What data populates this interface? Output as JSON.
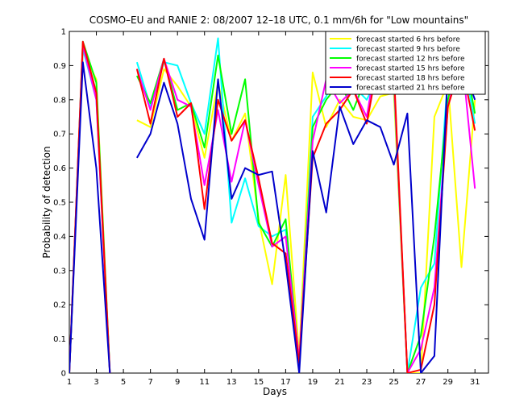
{
  "chart_data": {
    "type": "line",
    "title": "COSMO–EU and RANIE 2: 08/2007 12–18 UTC, 0.1 mm/6h for \"Low mountains\"",
    "xlabel": "Days",
    "ylabel": "Probability of detection",
    "xlim": [
      1,
      32
    ],
    "ylim": [
      0,
      1
    ],
    "xticks": [
      1,
      3,
      5,
      7,
      9,
      11,
      13,
      15,
      17,
      19,
      21,
      23,
      25,
      27,
      29,
      31
    ],
    "yticks": [
      0,
      0.1,
      0.2,
      0.3,
      0.4,
      0.5,
      0.6,
      0.7,
      0.8,
      0.9,
      1
    ],
    "ytick_labels": [
      "0",
      "0.1",
      "0.2",
      "0.3",
      "0.4",
      "0.5",
      "0.6",
      "0.7",
      "0.8",
      "0.9",
      "1"
    ],
    "grid": false,
    "legend_position": "top-right",
    "series": [
      {
        "name": "forecast started 6 hrs before",
        "color": "#ffff00",
        "x": [
          1,
          2,
          3,
          4,
          6,
          7,
          8,
          9,
          10,
          11,
          12,
          13,
          14,
          15,
          16,
          17,
          18,
          19,
          20,
          21,
          22,
          23,
          24,
          25,
          26,
          27,
          28,
          29,
          30,
          31
        ],
        "y": [
          0.0,
          0.94,
          0.86,
          0.0,
          0.74,
          0.72,
          0.89,
          0.84,
          0.78,
          0.63,
          0.85,
          0.68,
          0.76,
          0.45,
          0.26,
          0.58,
          0.05,
          0.88,
          0.72,
          0.8,
          0.75,
          0.74,
          0.81,
          0.82,
          0.0,
          0.0,
          0.75,
          0.85,
          0.31,
          0.8
        ]
      },
      {
        "name": "forecast started 9 hrs before",
        "color": "#00ffff",
        "x": [
          1,
          2,
          3,
          4,
          6,
          7,
          8,
          9,
          10,
          11,
          12,
          13,
          14,
          15,
          16,
          17,
          18,
          19,
          20,
          21,
          22,
          23,
          24,
          25,
          26,
          27,
          28,
          29,
          30,
          31
        ],
        "y": [
          0.0,
          0.95,
          0.8,
          0.0,
          0.91,
          0.78,
          0.91,
          0.9,
          0.79,
          0.7,
          0.98,
          0.44,
          0.57,
          0.43,
          0.4,
          0.42,
          0.02,
          0.75,
          0.81,
          0.89,
          0.84,
          0.8,
          0.88,
          0.85,
          0.0,
          0.25,
          0.32,
          0.87,
          0.95,
          0.73
        ]
      },
      {
        "name": "forecast started 12 hrs before",
        "color": "#00ff00",
        "x": [
          1,
          2,
          3,
          4,
          6,
          7,
          8,
          9,
          10,
          11,
          12,
          13,
          14,
          15,
          16,
          17,
          18,
          19,
          20,
          21,
          22,
          23,
          24,
          25,
          26,
          27,
          28,
          29,
          30,
          31
        ],
        "y": [
          0.0,
          0.97,
          0.85,
          0.0,
          0.87,
          0.79,
          0.92,
          0.77,
          0.79,
          0.66,
          0.93,
          0.7,
          0.86,
          0.44,
          0.37,
          0.45,
          0.03,
          0.72,
          0.8,
          0.85,
          0.77,
          0.87,
          0.89,
          0.86,
          0.0,
          0.11,
          0.4,
          0.8,
          0.97,
          0.76
        ]
      },
      {
        "name": "forecast started 15 hrs before",
        "color": "#ff00ff",
        "x": [
          1,
          2,
          3,
          4,
          6,
          7,
          8,
          9,
          10,
          11,
          12,
          13,
          14,
          15,
          16,
          17,
          18,
          19,
          20,
          21,
          22,
          23,
          24,
          25,
          26,
          27,
          28,
          29,
          30,
          31
        ],
        "y": [
          0.0,
          0.96,
          0.8,
          0.0,
          0.89,
          0.77,
          0.92,
          0.8,
          0.78,
          0.55,
          0.77,
          0.56,
          0.74,
          0.55,
          0.37,
          0.4,
          0.04,
          0.68,
          0.86,
          0.79,
          0.83,
          0.75,
          0.99,
          0.87,
          0.0,
          0.07,
          0.25,
          0.78,
          0.94,
          0.54
        ]
      },
      {
        "name": "forecast started 18 hrs before",
        "color": "#ff0000",
        "x": [
          1,
          2,
          3,
          4,
          6,
          7,
          8,
          9,
          10,
          11,
          12,
          13,
          14,
          15,
          16,
          17,
          18,
          19,
          20,
          21,
          22,
          23,
          24,
          25,
          26,
          27,
          28,
          29,
          30,
          31
        ],
        "y": [
          0.0,
          0.97,
          0.82,
          0.0,
          0.89,
          0.73,
          0.92,
          0.75,
          0.79,
          0.48,
          0.8,
          0.68,
          0.74,
          0.57,
          0.38,
          0.35,
          0.03,
          0.63,
          0.73,
          0.77,
          0.83,
          0.73,
          0.95,
          0.89,
          0.0,
          0.01,
          0.2,
          0.78,
          0.91,
          0.71
        ]
      },
      {
        "name": "forecast started 21 hrs before",
        "color": "#0000cc",
        "x": [
          1,
          2,
          3,
          4,
          6,
          7,
          8,
          9,
          10,
          11,
          12,
          13,
          14,
          15,
          16,
          17,
          18,
          19,
          20,
          21,
          22,
          23,
          24,
          25,
          26,
          27,
          28,
          29,
          30,
          31
        ],
        "y": [
          0.0,
          0.91,
          0.6,
          0.0,
          0.63,
          0.7,
          0.85,
          0.73,
          0.51,
          0.39,
          0.86,
          0.51,
          0.6,
          0.58,
          0.59,
          0.32,
          0.0,
          0.65,
          0.47,
          0.78,
          0.67,
          0.74,
          0.72,
          0.61,
          0.76,
          0.0,
          0.05,
          0.89,
          0.91,
          0.8
        ]
      }
    ]
  }
}
